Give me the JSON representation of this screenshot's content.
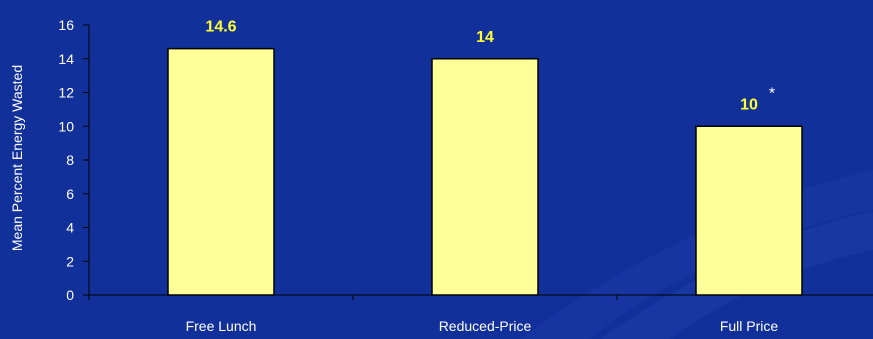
{
  "chart_data": {
    "type": "bar",
    "categories": [
      "Free Lunch",
      "Reduced-Price",
      "Full Price"
    ],
    "values": [
      14.6,
      14,
      10
    ],
    "data_labels": [
      "14.6",
      "14",
      "10"
    ],
    "annotations": [
      {
        "category": "Full Price",
        "text": "*"
      }
    ],
    "title": "",
    "xlabel": "",
    "ylabel": "Mean Percent Energy Wasted",
    "ylim": [
      0,
      16
    ],
    "yticks": [
      0,
      2,
      4,
      6,
      8,
      10,
      12,
      14,
      16
    ],
    "grid": false,
    "colors": {
      "background": "#12309a",
      "bar_fill": "#ffff99",
      "bar_stroke": "#000000",
      "data_label": "#ffff33",
      "axis": "#000000",
      "text": "#ffffff"
    }
  }
}
